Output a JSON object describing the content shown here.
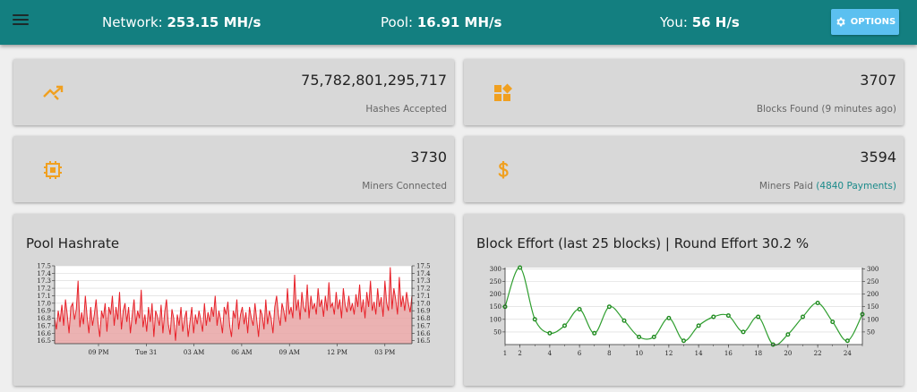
{
  "header": {
    "network_label": "Network:",
    "network_value": "253.15 MH/s",
    "pool_label": "Pool:",
    "pool_value": "16.91 MH/s",
    "you_label": "You:",
    "you_value": "56 H/s",
    "options_label": "OPTIONS"
  },
  "stats": {
    "hashes": {
      "value": "75,782,801,295,717",
      "label": "Hashes Accepted",
      "icon": "trending-icon"
    },
    "blocks": {
      "value": "3707",
      "label": "Blocks Found (9 minutes ago)",
      "icon": "widgets-icon"
    },
    "miners": {
      "value": "3730",
      "label": "Miners Connected",
      "icon": "cpu-icon"
    },
    "paid": {
      "value": "3594",
      "label": "Miners Paid ",
      "link": "(4840 Payments)",
      "icon": "dollar-icon"
    }
  },
  "colors": {
    "accent": "#137f80",
    "options": "#5bc0f0",
    "icon": "#f0a020",
    "hashrate_line": "#e8222a",
    "hashrate_fill": "#e8a4a4",
    "effort_line": "#2f9e2f"
  },
  "charts": {
    "hashrate_title": "Pool Hashrate",
    "effort_title": "Block Effort (last 25 blocks) | Round Effort 30.2 %"
  },
  "chart_data": [
    {
      "type": "area",
      "title": "Pool Hashrate",
      "x_ticks": [
        "09 PM",
        "Tue 31",
        "03 AM",
        "06 AM",
        "09 AM",
        "12 PM",
        "03 PM"
      ],
      "y_ticks": [
        "16.5",
        "16.6",
        "16.7",
        "16.8",
        "16.9",
        "17.0",
        "17.1",
        "17.2",
        "17.3",
        "17.4",
        "17.5"
      ],
      "ylim": [
        16.46,
        17.5
      ],
      "grid": true,
      "values": [
        16.8,
        16.65,
        16.9,
        16.75,
        16.98,
        16.7,
        17.05,
        16.85,
        16.6,
        16.95,
        17.0,
        16.78,
        16.92,
        17.3,
        16.68,
        16.88,
        16.72,
        17.1,
        16.82,
        16.6,
        16.95,
        16.7,
        16.85,
        17.05,
        16.75,
        16.55,
        16.9,
        16.8,
        17.0,
        16.62,
        16.95,
        16.85,
        17.1,
        16.7,
        16.95,
        16.78,
        17.15,
        16.65,
        16.9,
        17.0,
        16.75,
        16.95,
        16.6,
        16.85,
        17.05,
        16.72,
        16.9,
        16.8,
        17.18,
        16.68,
        16.85,
        16.62,
        16.95,
        16.75,
        17.0,
        16.55,
        16.9,
        16.82,
        16.7,
        16.98,
        16.6,
        16.88,
        17.05,
        16.72,
        16.58,
        16.92,
        16.8,
        16.5,
        16.85,
        16.7,
        16.95,
        16.62,
        16.8,
        16.9,
        16.55,
        16.75,
        16.95,
        16.6,
        16.85,
        16.72,
        16.9,
        16.78,
        16.62,
        17.0,
        16.7,
        16.88,
        16.75,
        16.95,
        16.82,
        17.1,
        16.7,
        16.9,
        16.78,
        16.6,
        16.95,
        16.85,
        17.02,
        16.7,
        16.55,
        16.9,
        16.8,
        17.05,
        16.65,
        16.85,
        16.95,
        16.72,
        16.88,
        16.6,
        16.95,
        16.8,
        16.7,
        17.0,
        16.78,
        16.55,
        16.92,
        16.85,
        16.65,
        17.05,
        16.72,
        16.9,
        16.8,
        16.6,
        16.95,
        17.1,
        16.85,
        16.7,
        17.0,
        16.9,
        16.75,
        17.2,
        16.85,
        16.95,
        16.8,
        17.38,
        16.9,
        17.05,
        16.78,
        17.15,
        16.95,
        16.88,
        17.25,
        16.8,
        17.1,
        16.92,
        17.0,
        16.85,
        17.2,
        16.95,
        17.05,
        16.82,
        17.1,
        16.9,
        17.28,
        16.95,
        17.0,
        16.85,
        17.15,
        16.92,
        17.05,
        16.8,
        17.2,
        16.98,
        16.88,
        17.1,
        16.9,
        17.0,
        16.85,
        17.12,
        16.95,
        17.25,
        16.88,
        17.05,
        16.8,
        17.15,
        16.95,
        17.3,
        16.9,
        17.02,
        16.85,
        17.2,
        16.95,
        17.08,
        16.82,
        17.3,
        17.0,
        16.9,
        17.48,
        16.92,
        17.2,
        17.05,
        16.85,
        17.35,
        16.95,
        17.1,
        16.9,
        17.15,
        17.0,
        16.88,
        17.1
      ]
    },
    {
      "type": "line",
      "title": "Block Effort (last 25 blocks) | Round Effort 30.2 %",
      "x_ticks": [
        "2",
        "4",
        "6",
        "8",
        "10",
        "12",
        "14",
        "16",
        "18",
        "20",
        "22",
        "24"
      ],
      "y_ticks": [
        "50",
        "100",
        "150",
        "200",
        "250",
        "300"
      ],
      "ylim": [
        0,
        305
      ],
      "xlim": [
        1,
        25
      ],
      "grid": true,
      "x": [
        1,
        2,
        3,
        4,
        5,
        6,
        7,
        8,
        9,
        10,
        11,
        12,
        13,
        14,
        15,
        16,
        17,
        18,
        19,
        20,
        21,
        22,
        23,
        24,
        25
      ],
      "values": [
        150,
        305,
        100,
        45,
        75,
        140,
        45,
        150,
        95,
        30,
        30,
        105,
        15,
        75,
        110,
        115,
        50,
        110,
        0,
        40,
        110,
        165,
        90,
        15,
        120
      ]
    }
  ]
}
